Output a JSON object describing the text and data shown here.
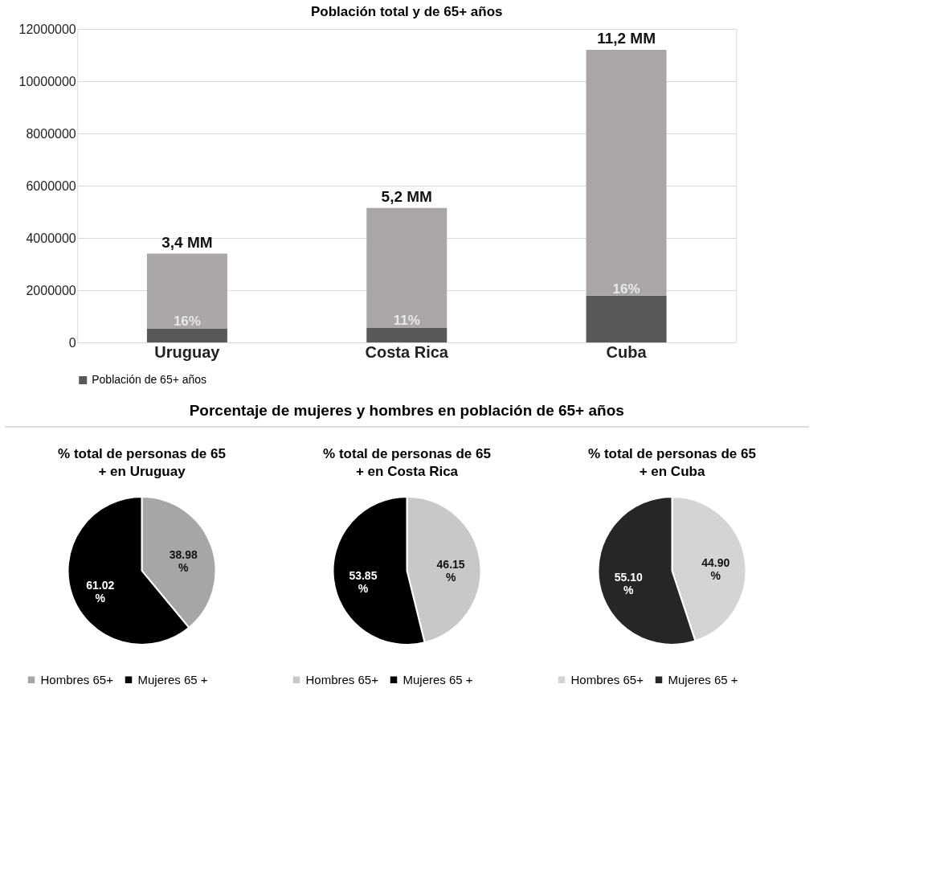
{
  "chart_data": [
    {
      "type": "bar",
      "title": "Población total y de 65+ años",
      "categories": [
        "Uruguay",
        "Costa Rica",
        "Cuba"
      ],
      "stacked": true,
      "ylim": [
        0,
        12000000
      ],
      "yticks": [
        0,
        2000000,
        4000000,
        6000000,
        8000000,
        10000000,
        12000000
      ],
      "grid": "y",
      "legend": "bottom",
      "series": [
        {
          "name": "Población de 65+ años",
          "color": "#595959",
          "values": [
            540000,
            570000,
            1790000
          ]
        },
        {
          "color": "#aaa6a6",
          "values": [
            2860000,
            4580000,
            9410000
          ]
        }
      ],
      "annotations": [
        {
          "text": "16%",
          "x": "Uruguay",
          "y": 540000
        },
        {
          "text": "11%",
          "x": "Costa Rica",
          "y": 570000
        },
        {
          "text": "16%",
          "x": "Cuba",
          "y": 1790000
        },
        {
          "text": "3,4 MM",
          "x": "Uruguay",
          "y": 3400000
        },
        {
          "text": "5,2 MM",
          "x": "Costa Rica",
          "y": 5150000
        },
        {
          "text": "11,2 MM",
          "x": "Cuba",
          "y": 11200000
        }
      ]
    },
    {
      "type": "other",
      "title": "Porcentaje de mujeres y hombres en población de 65+ años"
    },
    {
      "type": "pie",
      "title": "% total de personas de 65 + en Uruguay",
      "categories": [
        "Hombres 65+",
        "Mujeres 65 +"
      ],
      "values": [
        38.98,
        61.02
      ],
      "colors": [
        "#a6a6a6",
        "#000000"
      ],
      "value_labels": [
        "38.98 %",
        "61.02 %"
      ],
      "legend": "bottom"
    },
    {
      "type": "pie",
      "title": "% total de personas de 65 + en Costa Rica",
      "categories": [
        "Hombres 65+",
        "Mujeres 65 +"
      ],
      "values": [
        46.15,
        53.85
      ],
      "colors": [
        "#c8c8c8",
        "#000000"
      ],
      "value_labels": [
        "46.15 %",
        "53.85 %"
      ],
      "legend": "bottom"
    },
    {
      "type": "pie",
      "title": "% total de personas de 65 + en Cuba",
      "categories": [
        "Hombres 65+",
        "Mujeres 65 +"
      ],
      "values": [
        44.9,
        55.1
      ],
      "colors": [
        "#d4d4d4",
        "#262626"
      ],
      "value_labels": [
        "44.90 %",
        "55.10 %"
      ],
      "legend": "bottom"
    }
  ]
}
